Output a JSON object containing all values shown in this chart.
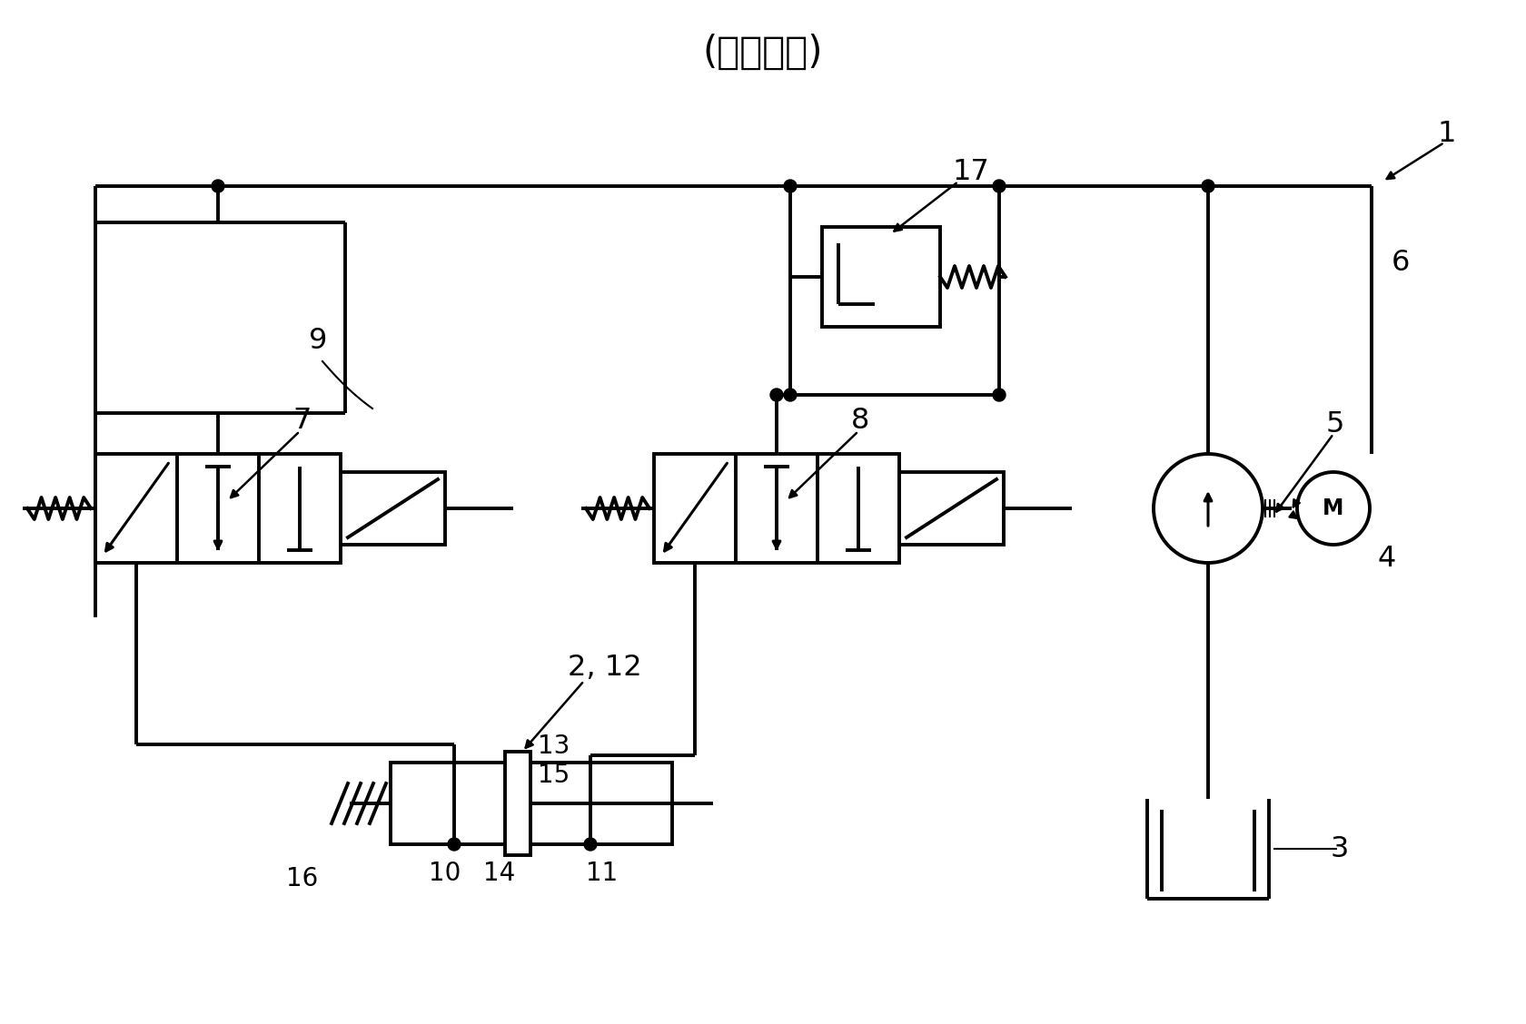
{
  "title": "(现有技术)",
  "bg": "#ffffff",
  "lc": "#000000",
  "lw": 2.8
}
